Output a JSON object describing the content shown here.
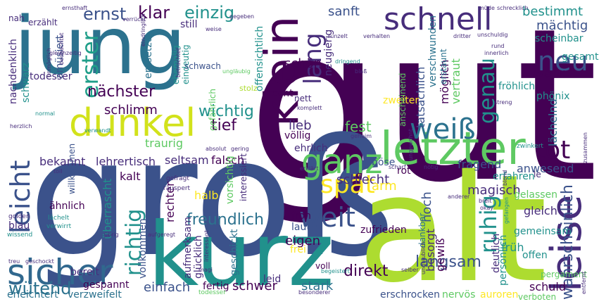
{
  "colors": {
    "background": "#ffffff",
    "palette": [
      "#440154",
      "#472d7b",
      "#3b528b",
      "#2c728e",
      "#21918c",
      "#28ae80",
      "#5ec962",
      "#addc30",
      "#fde725"
    ]
  },
  "words": [
    {
      "text": "gut",
      "color": "#440154"
    },
    {
      "text": "groß",
      "color": "#3b528b"
    },
    {
      "text": "alt",
      "color": "#addc30"
    },
    {
      "text": "jung",
      "color": "#2c728e"
    },
    {
      "text": "kurz",
      "color": "#21918c"
    },
    {
      "text": "letzter",
      "color": "#5ec962"
    },
    {
      "text": "dunkel",
      "color": "#d2e21b"
    },
    {
      "text": "leise",
      "color": "#472d7b"
    },
    {
      "text": "sicher",
      "color": "#31688e"
    },
    {
      "text": "ganz",
      "color": "#5ec962"
    },
    {
      "text": "klein",
      "color": "#440154"
    },
    {
      "text": "schnell",
      "color": "#472d7b"
    },
    {
      "text": "weiß",
      "color": "#2c728e"
    },
    {
      "text": "spät",
      "color": "#fde725"
    },
    {
      "text": "tot",
      "color": "#440154"
    },
    {
      "text": "leicht",
      "color": "#3b528b"
    },
    {
      "text": "neu",
      "color": "#3b528b"
    },
    {
      "text": "weit",
      "color": "#3b528b"
    },
    {
      "text": "genau",
      "color": "#21918c"
    },
    {
      "text": "lang",
      "color": "#472d7b"
    },
    {
      "text": "erster",
      "color": "#1f9e89"
    },
    {
      "text": "ruhig",
      "color": "#21918c"
    },
    {
      "text": "richtig",
      "color": "#21918c"
    },
    {
      "text": "nächster",
      "color": "#440154"
    },
    {
      "text": "freundlich",
      "color": "#2c728e"
    },
    {
      "text": "wütend",
      "color": "#2c728e"
    },
    {
      "text": "direkt",
      "color": "#440154"
    },
    {
      "text": "langsam",
      "color": "#3b528b"
    },
    {
      "text": "wahrscheinlich",
      "color": "#3b528b"
    },
    {
      "text": "klar",
      "color": "#440154"
    },
    {
      "text": "einzig",
      "color": "#21918c"
    },
    {
      "text": "ernst",
      "color": "#3b528b"
    },
    {
      "text": "wichtig",
      "color": "#21918c"
    },
    {
      "text": "tief",
      "color": "#440154"
    },
    {
      "text": "lieb",
      "color": "#472d7b"
    },
    {
      "text": "fest",
      "color": "#5ec962"
    },
    {
      "text": "schön",
      "color": "#440154"
    },
    {
      "text": "hoch",
      "color": "#3b528b"
    },
    {
      "text": "schlecht",
      "color": "#472d7b"
    },
    {
      "text": "arm",
      "color": "#fde725"
    },
    {
      "text": "magisch",
      "color": "#472d7b"
    },
    {
      "text": "bestimmt",
      "color": "#21918c"
    },
    {
      "text": "mächtig",
      "color": "#3b528b"
    },
    {
      "text": "wahr",
      "color": "#440154"
    },
    {
      "text": "sanft",
      "color": "#3b528b"
    },
    {
      "text": "schlimm",
      "color": "#440154"
    },
    {
      "text": "schwer",
      "color": "#440154"
    },
    {
      "text": "stark",
      "color": "#2c728e"
    },
    {
      "text": "einfach",
      "color": "#3b528b"
    },
    {
      "text": "eigen",
      "color": "#440154"
    },
    {
      "text": "bekannt",
      "color": "#472d7b"
    },
    {
      "text": "lehrertisch",
      "color": "#472d7b"
    },
    {
      "text": "seltsam",
      "color": "#472d7b"
    },
    {
      "text": "falsch",
      "color": "#440154"
    },
    {
      "text": "kalt",
      "color": "#440154"
    },
    {
      "text": "rechter",
      "color": "#440154"
    },
    {
      "text": "halb",
      "color": "#fde725"
    },
    {
      "text": "traurig",
      "color": "#5ec962"
    },
    {
      "text": "früh",
      "color": "#21918c"
    },
    {
      "text": "schuld",
      "color": "#440154"
    },
    {
      "text": "anwesend",
      "color": "#3b528b"
    },
    {
      "text": "gleich",
      "color": "#472d7b"
    },
    {
      "text": "fragend",
      "color": "#3b528b"
    },
    {
      "text": "lächelnd",
      "color": "#2c728e"
    },
    {
      "text": "tatsächlich",
      "color": "#3b528b"
    },
    {
      "text": "möglich",
      "color": "#440154"
    },
    {
      "text": "vertraut",
      "color": "#5ec962"
    },
    {
      "text": "überrascht",
      "color": "#21918c"
    },
    {
      "text": "besorgt",
      "color": "#472d7b"
    },
    {
      "text": "gewiß",
      "color": "#440154"
    },
    {
      "text": "ähnlich",
      "color": "#440154"
    },
    {
      "text": "blau",
      "color": "#472d7b"
    },
    {
      "text": "froh",
      "color": "#440154"
    },
    {
      "text": "laut",
      "color": "#3b528b"
    },
    {
      "text": "völlig",
      "color": "#440154"
    },
    {
      "text": "ehrlich",
      "color": "#472d7b"
    },
    {
      "text": "echt",
      "color": "#440154"
    },
    {
      "text": "nachdenklich",
      "color": "#472d7b"
    },
    {
      "text": "schwarz",
      "color": "#21918c"
    },
    {
      "text": "todesser",
      "color": "#472d7b"
    },
    {
      "text": "neugierig",
      "color": "#472d7b"
    },
    {
      "text": "zweiter",
      "color": "#fde725"
    },
    {
      "text": "gelassen",
      "color": "#5ec962"
    },
    {
      "text": "gemeinsam",
      "color": "#21918c"
    },
    {
      "text": "deutlich",
      "color": "#472d7b"
    },
    {
      "text": "offen",
      "color": "#21918c"
    },
    {
      "text": "persönlich",
      "color": "#21918c"
    },
    {
      "text": "erschrocken",
      "color": "#3b528b"
    },
    {
      "text": "nervös",
      "color": "#5ec962"
    },
    {
      "text": "auroren",
      "color": "#fde725"
    },
    {
      "text": "verboten",
      "color": "#5ec962"
    },
    {
      "text": "pergament",
      "color": "#5ec962"
    },
    {
      "text": "dankbar",
      "color": "#2c728e"
    },
    {
      "text": "zufrieden",
      "color": "#440154"
    },
    {
      "text": "leid",
      "color": "#472d7b"
    },
    {
      "text": "fertig",
      "color": "#440154"
    },
    {
      "text": "voll",
      "color": "#440154"
    },
    {
      "text": "geschickt",
      "color": "#2c728e"
    },
    {
      "text": "gespannt",
      "color": "#440154"
    },
    {
      "text": "bereit",
      "color": "#472d7b"
    },
    {
      "text": "erleichtert",
      "color": "#2c728e"
    },
    {
      "text": "verzweifelt",
      "color": "#2c728e"
    },
    {
      "text": "frei",
      "color": "#fde725"
    },
    {
      "text": "vollkommen",
      "color": "#3b528b"
    },
    {
      "text": "aufmerksam",
      "color": "#472d7b"
    },
    {
      "text": "glücklich",
      "color": "#472d7b"
    },
    {
      "text": "interessiert",
      "color": "#472d7b"
    },
    {
      "text": "vorsichtig",
      "color": "#5ec962"
    },
    {
      "text": "willkommen",
      "color": "#3b528b"
    },
    {
      "text": "rot",
      "color": "#440154"
    },
    {
      "text": "böse",
      "color": "#3b528b"
    },
    {
      "text": "erfahren",
      "color": "#21918c"
    },
    {
      "text": "phönix",
      "color": "#21918c"
    },
    {
      "text": "fröhlich",
      "color": "#21918c"
    },
    {
      "text": "scheinbar",
      "color": "#21918c"
    },
    {
      "text": "gesamt",
      "color": "#21918c"
    },
    {
      "text": "le",
      "color": "#472d7b"
    },
    {
      "text": "verschwunden",
      "color": "#2c728e"
    },
    {
      "text": "erstaunt",
      "color": "#2c728e"
    },
    {
      "text": "entsetzt",
      "color": "#2c728e"
    },
    {
      "text": "amüsiert",
      "color": "#3b528b"
    },
    {
      "text": "ehemalig",
      "color": "#21918c"
    },
    {
      "text": "eindeutig",
      "color": "#21918c"
    },
    {
      "text": "offensichtlich",
      "color": "#21918c"
    },
    {
      "text": "gefährlich",
      "color": "#5ec962"
    },
    {
      "text": "schwach",
      "color": "#3b528b"
    },
    {
      "text": "still",
      "color": "#472d7b"
    },
    {
      "text": "nah",
      "color": "#472d7b"
    },
    {
      "text": "erzählt",
      "color": "#472d7b"
    },
    {
      "text": "anscheinend",
      "color": "#5ec962"
    },
    {
      "text": "nett",
      "color": "#472d7b"
    },
    {
      "text": "stolz",
      "color": "#addc30"
    },
    {
      "text": "zwinkert",
      "color": "#21918c"
    },
    {
      "text": "gefragt",
      "color": "#472d7b"
    },
    {
      "text": "räuspert",
      "color": "#472d7b"
    },
    {
      "text": "erklärt",
      "color": "#472d7b"
    },
    {
      "text": "scharf",
      "color": "#472d7b"
    },
    {
      "text": "nötig",
      "color": "#472d7b"
    },
    {
      "text": "blond",
      "color": "#472d7b"
    },
    {
      "text": "anderer",
      "color": "#472d7b"
    },
    {
      "text": "breit",
      "color": "#472d7b"
    },
    {
      "text": "okay",
      "color": "#472d7b"
    },
    {
      "text": "aufgeregt",
      "color": "#472d7b"
    },
    {
      "text": "übrig",
      "color": "#472d7b"
    },
    {
      "text": "lächelt",
      "color": "#21918c"
    },
    {
      "text": "verwirrt",
      "color": "#21918c"
    },
    {
      "text": "golden",
      "color": "#472d7b"
    },
    {
      "text": "wissend",
      "color": "#21918c"
    },
    {
      "text": "treu",
      "color": "#472d7b"
    },
    {
      "text": "geschockt",
      "color": "#472d7b"
    },
    {
      "text": "interessant",
      "color": "#472d7b"
    },
    {
      "text": "begeistert",
      "color": "#21918c"
    },
    {
      "text": "besonderer",
      "color": "#472d7b"
    },
    {
      "text": "ungläubig",
      "color": "#5ec962"
    },
    {
      "text": "toll",
      "color": "#472d7b"
    },
    {
      "text": "herzlich",
      "color": "#472d7b"
    },
    {
      "text": "normal",
      "color": "#21918c"
    },
    {
      "text": "verwandt",
      "color": "#21918c"
    },
    {
      "text": "betrachtet",
      "color": "#472d7b"
    },
    {
      "text": "unmöglich",
      "color": "#472d7b"
    },
    {
      "text": "beobachtet",
      "color": "#472d7b"
    },
    {
      "text": "gleichzeitig",
      "color": "#472d7b"
    },
    {
      "text": "eindringlich",
      "color": "#472d7b"
    },
    {
      "text": "ernsthaft",
      "color": "#472d7b"
    },
    {
      "text": "verrückt",
      "color": "#472d7b"
    },
    {
      "text": "weise",
      "color": "#472d7b"
    },
    {
      "text": "gegeben",
      "color": "#472d7b"
    },
    {
      "text": "müde",
      "color": "#472d7b"
    },
    {
      "text": "schrecklich",
      "color": "#472d7b"
    },
    {
      "text": "runzelt",
      "color": "#472d7b"
    },
    {
      "text": "verhalten",
      "color": "#472d7b"
    },
    {
      "text": "dritter",
      "color": "#472d7b"
    },
    {
      "text": "unschuldig",
      "color": "#472d7b"
    },
    {
      "text": "rund",
      "color": "#472d7b"
    },
    {
      "text": "innerlich",
      "color": "#472d7b"
    },
    {
      "text": "dringend",
      "color": "#21918c"
    },
    {
      "text": "blaß",
      "color": "#472d7b"
    },
    {
      "text": "streng",
      "color": "#472d7b"
    },
    {
      "text": "komplett",
      "color": "#472d7b"
    },
    {
      "text": "gering",
      "color": "#472d7b"
    },
    {
      "text": "absolut",
      "color": "#472d7b"
    },
    {
      "text": "geheim",
      "color": "#472d7b"
    },
    {
      "text": "selber",
      "color": "#472d7b"
    },
    {
      "text": "ungewohnt",
      "color": "#472d7b"
    },
    {
      "text": "unglaublich",
      "color": "#472d7b"
    },
    {
      "text": "zusammen",
      "color": "#472d7b"
    },
    {
      "text": "entfernt",
      "color": "#472d7b"
    },
    {
      "text": "magi",
      "color": "#472d7b"
    },
    {
      "text": "gefangen",
      "color": "#21918c"
    },
    {
      "text": "todesser",
      "color": "#5ec962"
    }
  ]
}
